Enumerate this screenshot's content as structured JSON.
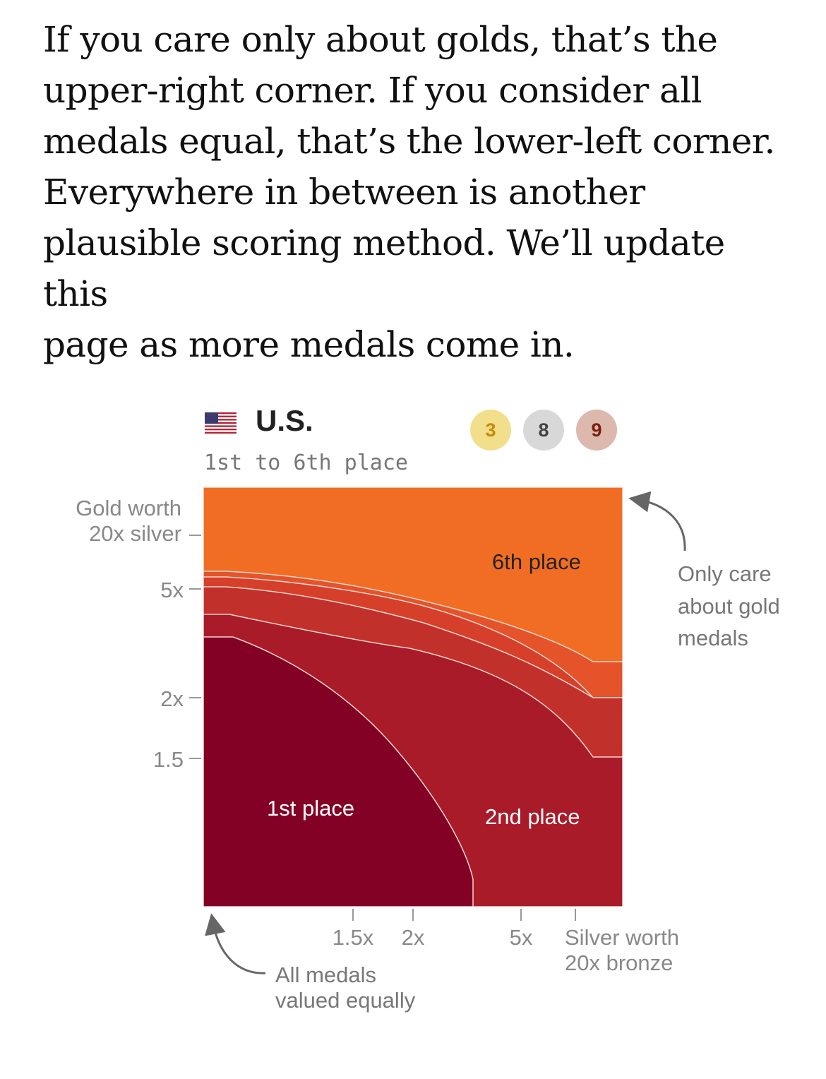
{
  "intro": {
    "lines": [
      "If you care only about golds, that’s the",
      "upper-right corner. If you consider all",
      "medals equal, that’s the lower-left corner.",
      "Everywhere in between is another",
      "plausible scoring method. We’ll update this",
      "page as more medals come in."
    ]
  },
  "header": {
    "country": "U.S.",
    "flag_icon": "us-flag-icon",
    "subtitle": "1st to 6th place",
    "medals": {
      "gold": "3",
      "silver": "8",
      "bronze": "9"
    },
    "colors": {
      "gold": "#f2df8b",
      "silver": "#d8d8d8",
      "bronze": "#dcb8ad"
    }
  },
  "chart_data": {
    "type": "heatmap",
    "title": "U.S.",
    "subtitle": "1st to 6th place",
    "x": {
      "label_lines": [
        "Silver worth",
        "20x bronze"
      ],
      "ticks": [
        {
          "value": 1.5,
          "label": "1.5x"
        },
        {
          "value": 2,
          "label": "2x"
        },
        {
          "value": 5,
          "label": "5x"
        },
        {
          "value": 20,
          "label": ""
        }
      ],
      "range": [
        1,
        20
      ]
    },
    "y": {
      "label_lines": [
        "Gold worth",
        "20x silver"
      ],
      "ticks": [
        {
          "value": 1.5,
          "label": "1.5"
        },
        {
          "value": 2,
          "label": "2x"
        },
        {
          "value": 5,
          "label": "5x"
        },
        {
          "value": 20,
          "label": ""
        }
      ],
      "range": [
        1,
        20
      ]
    },
    "regions": [
      {
        "label": "6th place",
        "color": "#f26d24"
      },
      {
        "label": "",
        "color": "#e4532a"
      },
      {
        "label": "",
        "color": "#d63f2a"
      },
      {
        "label": "",
        "color": "#c2302b"
      },
      {
        "label": "2nd place",
        "color": "#a91b29"
      },
      {
        "label": "1st place",
        "color": "#820124"
      }
    ],
    "annotations": [
      {
        "text_lines": [
          "Only care",
          "about gold",
          "medals"
        ]
      },
      {
        "text_lines": [
          "All medals",
          "valued equally"
        ]
      }
    ]
  }
}
